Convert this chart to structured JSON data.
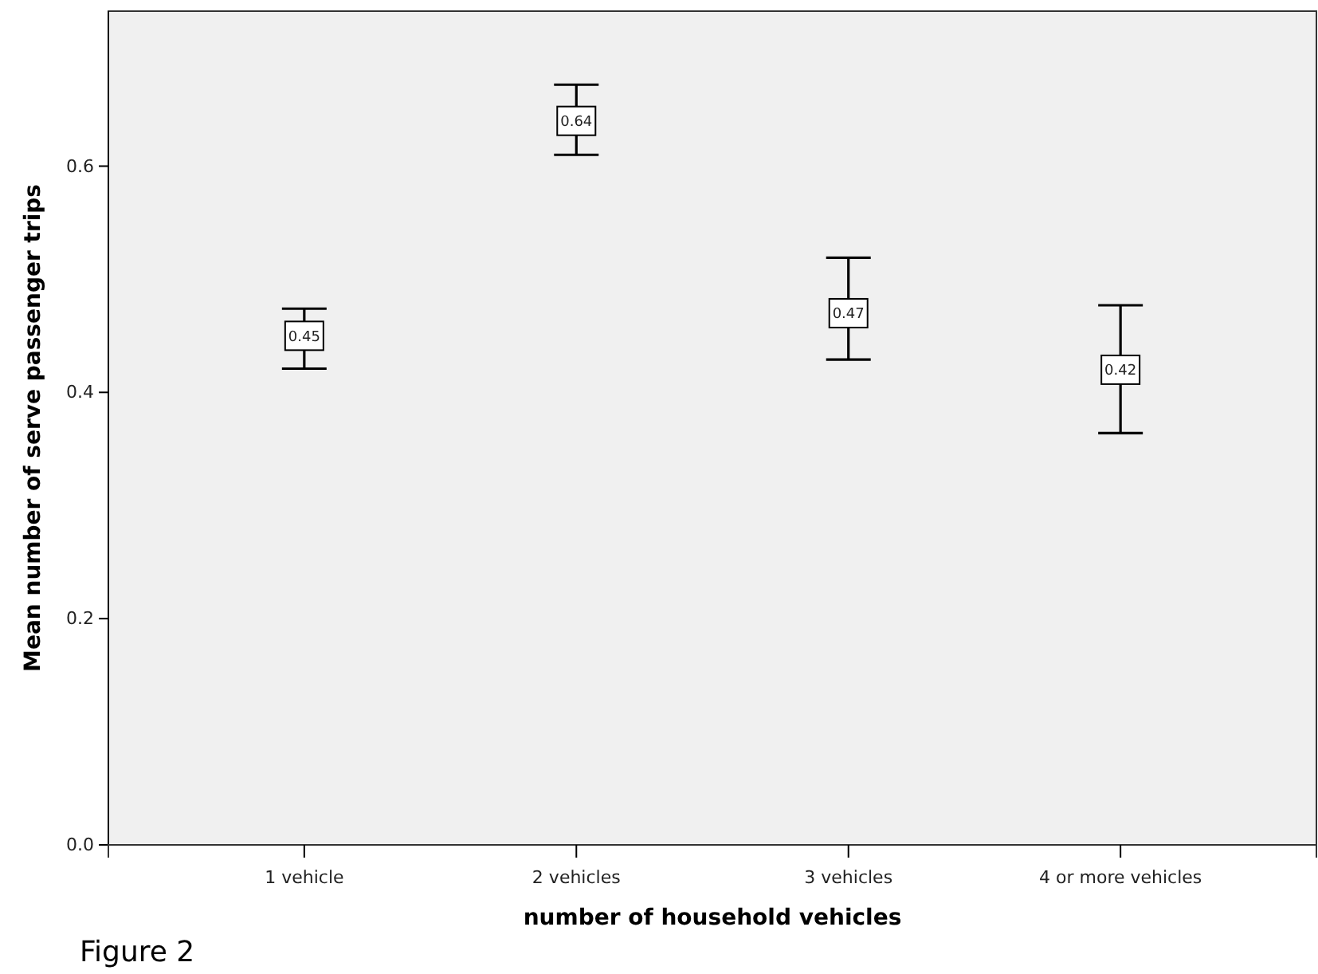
{
  "chart_data": {
    "type": "scatter",
    "xlabel": "number of household vehicles",
    "ylabel": "Mean number of serve passenger trips",
    "categories": [
      "1 vehicle",
      "2 vehicles",
      "3 vehicles",
      "4 or more vehicles"
    ],
    "values": [
      0.45,
      0.64,
      0.47,
      0.42
    ],
    "errors": [
      [
        0.421,
        0.474
      ],
      [
        0.61,
        0.672
      ],
      [
        0.429,
        0.519
      ],
      [
        0.364,
        0.477
      ]
    ],
    "color": "#000000",
    "ylim": [
      0,
      0.737
    ],
    "yticks": [
      {
        "value": 0,
        "label": "0.0"
      },
      0.2,
      0.4,
      0.6
    ],
    "data_labels": true,
    "marker": "square",
    "grid": false,
    "annotations": [
      "Figure 2"
    ]
  }
}
